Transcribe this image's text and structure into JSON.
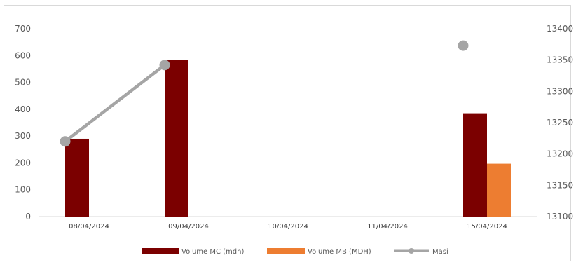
{
  "chart_data": {
    "type": "bar",
    "categories": [
      "08/04/2024",
      "09/04/2024",
      "10/04/2024",
      "11/04/2024",
      "15/04/2024"
    ],
    "series": [
      {
        "name": "Volume MC (mdh)",
        "type": "bar",
        "axis": "left",
        "color": "#7b0000",
        "values": [
          290,
          585,
          null,
          null,
          385
        ]
      },
      {
        "name": "Volume MB (MDH)",
        "type": "bar",
        "axis": "left",
        "color": "#ed7d31",
        "values": [
          null,
          null,
          null,
          null,
          197
        ]
      },
      {
        "name": "Masi",
        "type": "line",
        "axis": "right",
        "color": "#a5a5a5",
        "values": [
          13220,
          13342,
          null,
          null,
          13373
        ]
      }
    ],
    "ylim_left": [
      0,
      700
    ],
    "yticks_left": [
      "0",
      "100",
      "200",
      "300",
      "400",
      "500",
      "600",
      "700"
    ],
    "ylim_right": [
      13100,
      13400
    ],
    "yticks_right": [
      "13100",
      "13150",
      "13200",
      "13250",
      "13300",
      "13350",
      "13400"
    ],
    "title": "",
    "xlabel": "",
    "ylabel": "",
    "grid": false,
    "legend_position": "bottom"
  }
}
